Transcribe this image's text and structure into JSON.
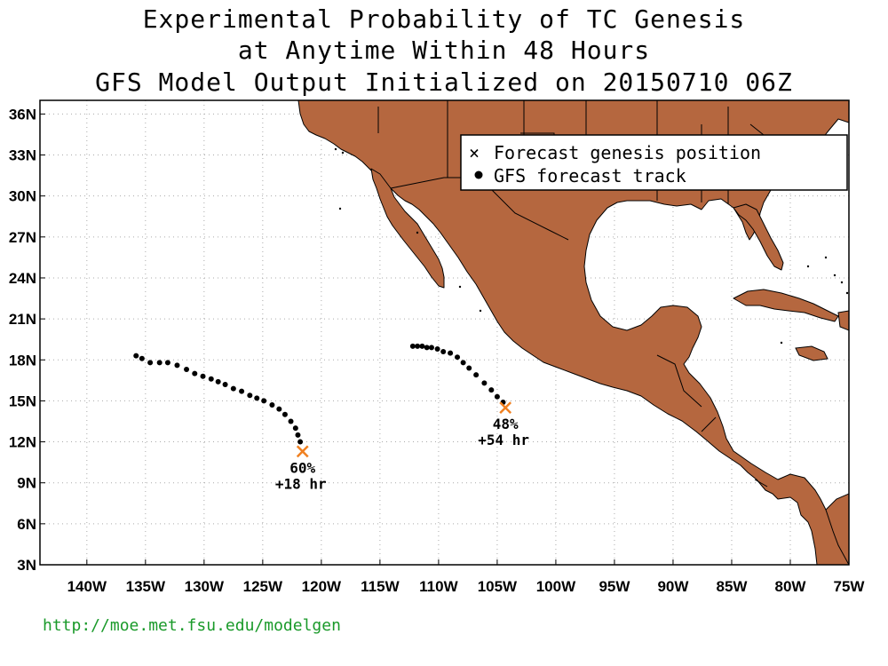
{
  "title": {
    "line1": "Experimental Probability of TC Genesis",
    "line2": "at Anytime Within 48 Hours",
    "line3": "GFS Model Output Initialized on 20150710 06Z"
  },
  "legend": {
    "genesis_label": "Forecast genesis position",
    "track_label": "GFS forecast track"
  },
  "axes": {
    "lat_labels": [
      "36N",
      "33N",
      "30N",
      "27N",
      "24N",
      "21N",
      "18N",
      "15N",
      "12N",
      "9N",
      "6N",
      "3N"
    ],
    "lon_labels": [
      "140W",
      "135W",
      "130W",
      "125W",
      "120W",
      "115W",
      "110W",
      "105W",
      "100W",
      "95W",
      "90W",
      "85W",
      "80W",
      "75W"
    ],
    "lat_range": [
      3,
      37
    ],
    "lon_range": [
      -144,
      -75
    ]
  },
  "colors": {
    "land": "#b5673f",
    "genesis_marker": "#f08020",
    "link": "#1a9a2a"
  },
  "forecasts": [
    {
      "probability": "60%",
      "lead": "+18 hr",
      "genesis": [
        -121.6,
        11.3
      ],
      "track": [
        [
          -135.8,
          18.3
        ],
        [
          -135.3,
          18.1
        ],
        [
          -134.6,
          17.8
        ],
        [
          -133.8,
          17.8
        ],
        [
          -133.1,
          17.8
        ],
        [
          -132.3,
          17.6
        ],
        [
          -131.5,
          17.3
        ],
        [
          -130.8,
          17.0
        ],
        [
          -130.1,
          16.8
        ],
        [
          -129.4,
          16.6
        ],
        [
          -128.8,
          16.4
        ],
        [
          -128.2,
          16.2
        ],
        [
          -127.5,
          15.9
        ],
        [
          -126.8,
          15.7
        ],
        [
          -126.1,
          15.4
        ],
        [
          -125.5,
          15.2
        ],
        [
          -124.9,
          15.0
        ],
        [
          -124.2,
          14.7
        ],
        [
          -123.6,
          14.4
        ],
        [
          -123.1,
          14.0
        ],
        [
          -122.6,
          13.5
        ],
        [
          -122.2,
          13.0
        ],
        [
          -122.0,
          12.5
        ],
        [
          -121.8,
          12.0
        ]
      ]
    },
    {
      "probability": "48%",
      "lead": "+54 hr",
      "genesis": [
        -104.3,
        14.5
      ],
      "track": [
        [
          -112.2,
          19.0
        ],
        [
          -111.8,
          19.0
        ],
        [
          -111.4,
          19.0
        ],
        [
          -111.0,
          18.9
        ],
        [
          -110.6,
          18.9
        ],
        [
          -110.1,
          18.8
        ],
        [
          -109.6,
          18.6
        ],
        [
          -109.0,
          18.5
        ],
        [
          -108.4,
          18.2
        ],
        [
          -107.9,
          17.8
        ],
        [
          -107.4,
          17.4
        ],
        [
          -106.8,
          16.9
        ],
        [
          -106.1,
          16.3
        ],
        [
          -105.5,
          15.8
        ],
        [
          -105.0,
          15.3
        ],
        [
          -104.5,
          14.9
        ]
      ]
    }
  ],
  "footer": {
    "url": "http://moe.met.fsu.edu/modelgen"
  }
}
